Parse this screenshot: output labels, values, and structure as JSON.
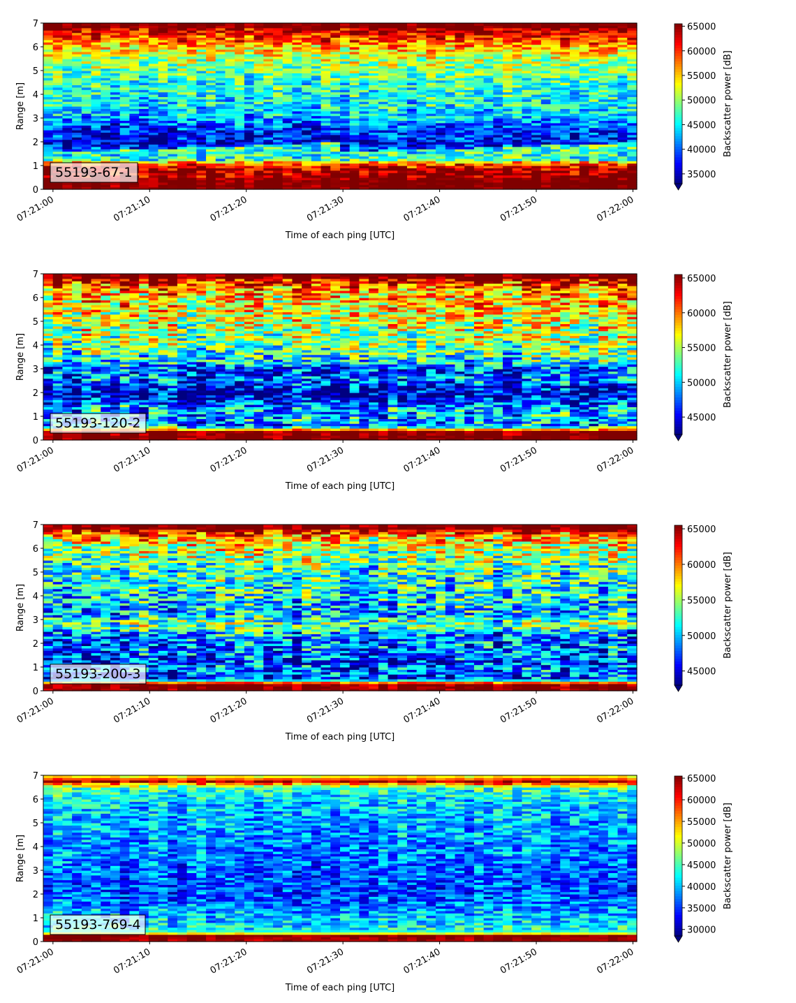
{
  "chart_data": [
    {
      "type": "heatmap",
      "label": "55193-67-1",
      "xlabel": "Time of each ping [UTC]",
      "ylabel": "Range [m]",
      "colorbar_label": "Backscatter power [dB]",
      "colormap": "jet",
      "colorbar_extend": "min",
      "x_range": [
        "07:21:00",
        "07:22:00"
      ],
      "x_ticks": [
        "07:21:00",
        "07:21:10",
        "07:21:20",
        "07:21:30",
        "07:21:40",
        "07:21:50",
        "07:22:00"
      ],
      "y_range": [
        0,
        7
      ],
      "y_ticks": [
        0,
        1,
        2,
        3,
        4,
        5,
        6,
        7
      ],
      "clim": [
        33000,
        65500
      ],
      "colorbar_ticks": [
        35000,
        40000,
        45000,
        50000,
        55000,
        60000,
        65000
      ],
      "range_profile": [
        {
          "range": 0.1,
          "value": 65500
        },
        {
          "range": 0.3,
          "value": 65500
        },
        {
          "range": 0.6,
          "value": 64500
        },
        {
          "range": 0.9,
          "value": 63500
        },
        {
          "range": 1.1,
          "value": 58000
        },
        {
          "range": 1.3,
          "value": 46000
        },
        {
          "range": 1.6,
          "value": 40000
        },
        {
          "range": 2.0,
          "value": 36500
        },
        {
          "range": 2.5,
          "value": 38000
        },
        {
          "range": 3.0,
          "value": 42500
        },
        {
          "range": 3.5,
          "value": 45000
        },
        {
          "range": 4.0,
          "value": 45500
        },
        {
          "range": 4.5,
          "value": 46500
        },
        {
          "range": 5.0,
          "value": 48500
        },
        {
          "range": 5.5,
          "value": 51000
        },
        {
          "range": 6.0,
          "value": 55000
        },
        {
          "range": 6.3,
          "value": 59000
        },
        {
          "range": 6.6,
          "value": 61500
        },
        {
          "range": 6.85,
          "value": 65500
        }
      ]
    },
    {
      "type": "heatmap",
      "label": "55193-120-2",
      "xlabel": "Time of each ping [UTC]",
      "ylabel": "Range [m]",
      "colorbar_label": "Backscatter power [dB]",
      "colormap": "jet",
      "colorbar_extend": "min",
      "x_range": [
        "07:21:00",
        "07:22:00"
      ],
      "x_ticks": [
        "07:21:00",
        "07:21:10",
        "07:21:20",
        "07:21:30",
        "07:21:40",
        "07:21:50",
        "07:22:00"
      ],
      "y_range": [
        0,
        7
      ],
      "y_ticks": [
        0,
        1,
        2,
        3,
        4,
        5,
        6,
        7
      ],
      "clim": [
        42500,
        65500
      ],
      "colorbar_ticks": [
        45000,
        50000,
        55000,
        60000,
        65000
      ],
      "range_profile": [
        {
          "range": 0.1,
          "value": 65500
        },
        {
          "range": 0.35,
          "value": 65500
        },
        {
          "range": 0.6,
          "value": 49000
        },
        {
          "range": 1.0,
          "value": 49500
        },
        {
          "range": 1.4,
          "value": 49000
        },
        {
          "range": 1.7,
          "value": 45000
        },
        {
          "range": 2.0,
          "value": 44000
        },
        {
          "range": 2.3,
          "value": 45500
        },
        {
          "range": 2.6,
          "value": 48500
        },
        {
          "range": 3.0,
          "value": 46500
        },
        {
          "range": 3.3,
          "value": 51000
        },
        {
          "range": 3.8,
          "value": 53000
        },
        {
          "range": 4.3,
          "value": 54500
        },
        {
          "range": 4.8,
          "value": 55500
        },
        {
          "range": 5.3,
          "value": 56500
        },
        {
          "range": 5.8,
          "value": 57500
        },
        {
          "range": 6.2,
          "value": 58500
        },
        {
          "range": 6.5,
          "value": 60000
        },
        {
          "range": 6.85,
          "value": 65500
        }
      ]
    },
    {
      "type": "heatmap",
      "label": "55193-200-3",
      "xlabel": "Time of each ping [UTC]",
      "ylabel": "Range [m]",
      "colorbar_label": "Backscatter power [dB]",
      "colormap": "jet",
      "colorbar_extend": "min",
      "x_range": [
        "07:21:00",
        "07:22:00"
      ],
      "x_ticks": [
        "07:21:00",
        "07:21:10",
        "07:21:20",
        "07:21:30",
        "07:21:40",
        "07:21:50",
        "07:22:00"
      ],
      "y_range": [
        0,
        7
      ],
      "y_ticks": [
        0,
        1,
        2,
        3,
        4,
        5,
        6,
        7
      ],
      "clim": [
        43000,
        65500
      ],
      "colorbar_ticks": [
        45000,
        50000,
        55000,
        60000,
        65000
      ],
      "range_profile": [
        {
          "range": 0.1,
          "value": 65500
        },
        {
          "range": 0.3,
          "value": 65000
        },
        {
          "range": 0.5,
          "value": 46500
        },
        {
          "range": 0.9,
          "value": 49000
        },
        {
          "range": 1.2,
          "value": 46000
        },
        {
          "range": 1.6,
          "value": 48500
        },
        {
          "range": 2.0,
          "value": 48000
        },
        {
          "range": 2.4,
          "value": 49000
        },
        {
          "range": 2.8,
          "value": 54500
        },
        {
          "range": 3.2,
          "value": 50000
        },
        {
          "range": 3.7,
          "value": 50500
        },
        {
          "range": 4.2,
          "value": 51500
        },
        {
          "range": 4.7,
          "value": 52000
        },
        {
          "range": 5.2,
          "value": 53000
        },
        {
          "range": 5.7,
          "value": 54500
        },
        {
          "range": 6.1,
          "value": 56000
        },
        {
          "range": 6.5,
          "value": 58500
        },
        {
          "range": 6.85,
          "value": 65500
        }
      ]
    },
    {
      "type": "heatmap",
      "label": "55193-769-4",
      "xlabel": "Time of each ping [UTC]",
      "ylabel": "Range [m]",
      "colorbar_label": "Backscatter power [dB]",
      "colormap": "jet",
      "colorbar_extend": "min",
      "x_range": [
        "07:21:00",
        "07:22:00"
      ],
      "x_ticks": [
        "07:21:00",
        "07:21:10",
        "07:21:20",
        "07:21:30",
        "07:21:40",
        "07:21:50",
        "07:22:00"
      ],
      "y_range": [
        0,
        7
      ],
      "y_ticks": [
        0,
        1,
        2,
        3,
        4,
        5,
        6,
        7
      ],
      "clim": [
        28500,
        65500
      ],
      "colorbar_ticks": [
        30000,
        35000,
        40000,
        45000,
        50000,
        55000,
        60000,
        65000
      ],
      "range_profile": [
        {
          "range": 0.1,
          "value": 64000
        },
        {
          "range": 0.25,
          "value": 65500
        },
        {
          "range": 0.4,
          "value": 44000
        },
        {
          "range": 0.8,
          "value": 41000
        },
        {
          "range": 1.2,
          "value": 39500
        },
        {
          "range": 1.7,
          "value": 37000
        },
        {
          "range": 2.2,
          "value": 35500
        },
        {
          "range": 2.7,
          "value": 36000
        },
        {
          "range": 3.2,
          "value": 37000
        },
        {
          "range": 3.7,
          "value": 38000
        },
        {
          "range": 4.2,
          "value": 38500
        },
        {
          "range": 4.7,
          "value": 39000
        },
        {
          "range": 5.2,
          "value": 39500
        },
        {
          "range": 5.7,
          "value": 40500
        },
        {
          "range": 6.2,
          "value": 42500
        },
        {
          "range": 6.5,
          "value": 45000
        },
        {
          "range": 6.75,
          "value": 63500
        },
        {
          "range": 6.95,
          "value": 52000
        }
      ]
    }
  ]
}
